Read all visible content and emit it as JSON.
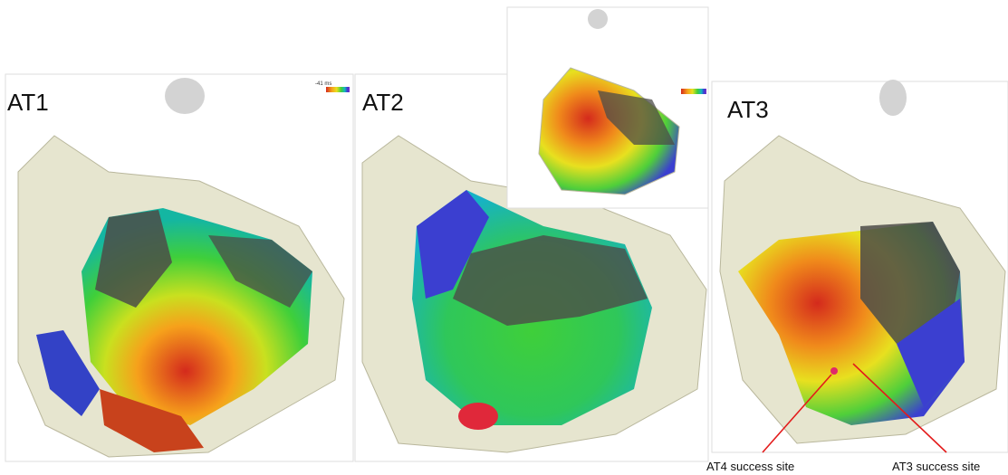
{
  "panels": [
    {
      "label": "AT1",
      "scale_label": "-41 ms"
    },
    {
      "label": "AT2"
    },
    {
      "label": "AT3"
    }
  ],
  "annotations": [
    {
      "label": "AT4 success site"
    },
    {
      "label": "AT3 success site"
    }
  ]
}
